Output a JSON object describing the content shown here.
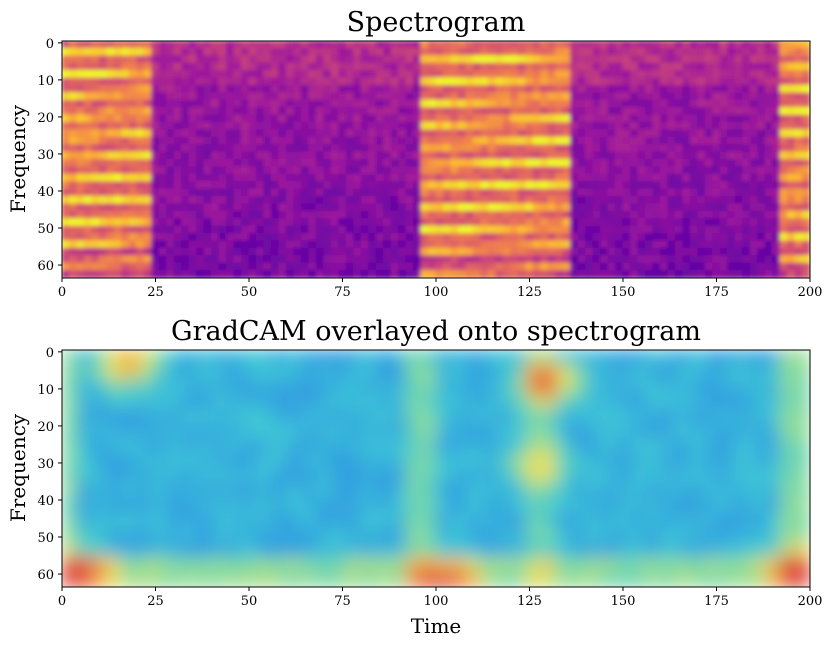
{
  "chart_data": [
    {
      "type": "heatmap",
      "title": "Spectrogram",
      "xlabel": "",
      "ylabel": "Frequency",
      "xlim": [
        0,
        200
      ],
      "ylim": [
        63.5,
        -0.5
      ],
      "xticks": [
        0,
        25,
        50,
        75,
        100,
        125,
        150,
        175,
        200
      ],
      "yticks": [
        0,
        10,
        20,
        30,
        40,
        50,
        60
      ],
      "colormap": "plasma",
      "colorscale": [
        "#0d0887",
        "#5c01a6",
        "#9c179e",
        "#cc4778",
        "#ed7953",
        "#fdb42f",
        "#f0f921"
      ],
      "energy_segments": [
        {
          "start": 0,
          "end": 24,
          "level": "high"
        },
        {
          "start": 24,
          "end": 96,
          "level": "low"
        },
        {
          "start": 96,
          "end": 136,
          "level": "high"
        },
        {
          "start": 136,
          "end": 192,
          "level": "low"
        },
        {
          "start": 192,
          "end": 200,
          "level": "high"
        }
      ]
    },
    {
      "type": "heatmap",
      "title": "GradCAM overlayed onto spectrogram",
      "xlabel": "Time",
      "ylabel": "Frequency",
      "xlim": [
        0,
        200
      ],
      "ylim": [
        63.5,
        -0.5
      ],
      "xticks": [
        0,
        25,
        50,
        75,
        100,
        125,
        150,
        175,
        200
      ],
      "yticks": [
        0,
        10,
        20,
        30,
        40,
        50,
        60
      ],
      "colormap": "jet",
      "colorscale": [
        "#1f3fd0",
        "#2a86e8",
        "#3dc6d6",
        "#86dca0",
        "#e8e060",
        "#f0a040",
        "#e04a3a"
      ],
      "hotspots": [
        {
          "t": 18,
          "f": 3,
          "intensity": "high"
        },
        {
          "t": 5,
          "f": 60,
          "intensity": "high"
        },
        {
          "t": 103,
          "f": 62,
          "intensity": "high"
        },
        {
          "t": 130,
          "f": 8,
          "intensity": "high"
        },
        {
          "t": 197,
          "f": 60,
          "intensity": "high"
        },
        {
          "t": 127,
          "f": 30,
          "intensity": "medium"
        }
      ]
    }
  ]
}
